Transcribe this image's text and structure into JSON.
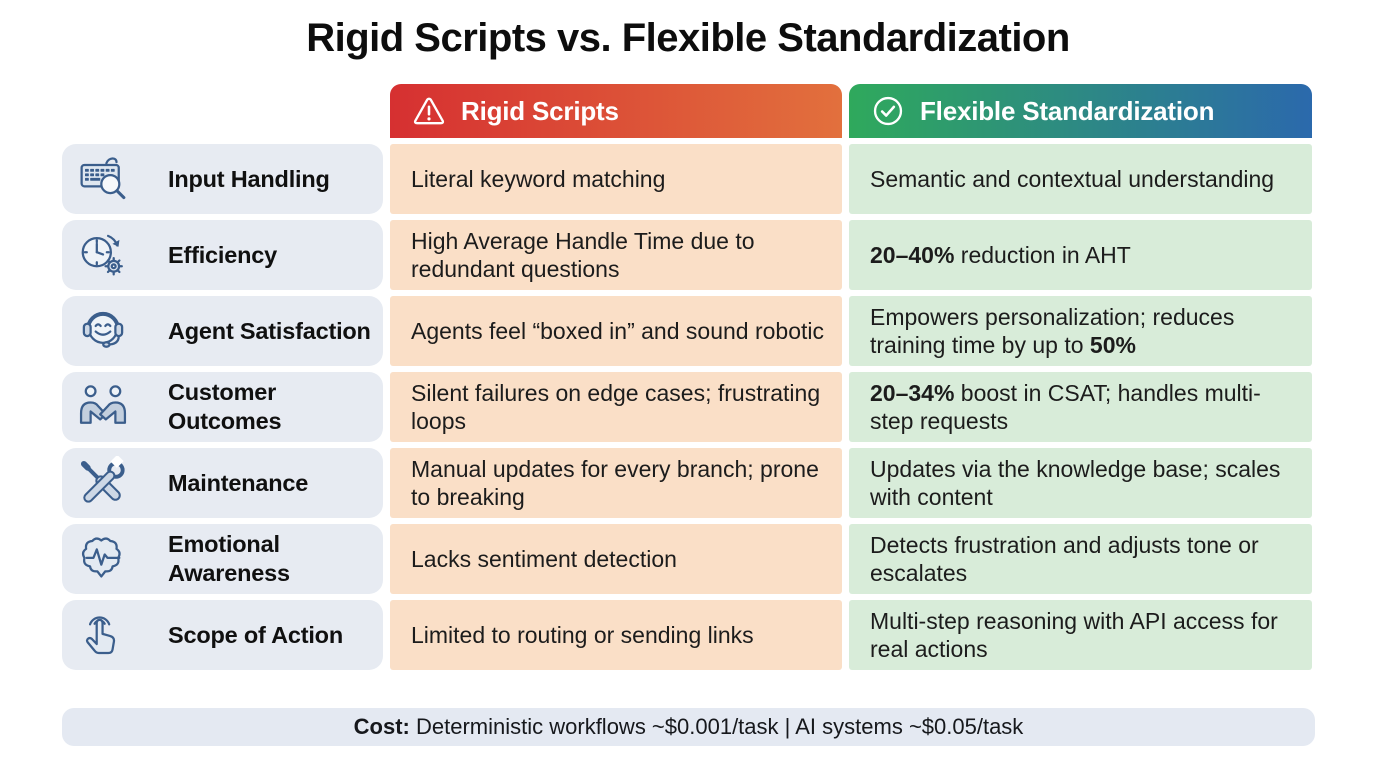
{
  "title": "Rigid Scripts vs. Flexible Standardization",
  "header": {
    "rigid": {
      "label": "Rigid Scripts",
      "icon": "warning-triangle-icon"
    },
    "flexible": {
      "label": "Flexible Standardization",
      "icon": "check-circle-icon"
    }
  },
  "rows": [
    {
      "category": "Input Handling",
      "icon": "keyboard-search-icon",
      "rigid": [
        {
          "t": "Literal keyword matching",
          "b": false
        }
      ],
      "flexible": [
        {
          "t": "Semantic and contextual understanding",
          "b": false
        }
      ]
    },
    {
      "category": "Efficiency",
      "icon": "clock-gear-icon",
      "rigid": [
        {
          "t": "High Average Handle Time due to redundant questions",
          "b": false
        }
      ],
      "flexible": [
        {
          "t": "20–40%",
          "b": true
        },
        {
          "t": " reduction in AHT",
          "b": false
        }
      ]
    },
    {
      "category": "Agent Satisfaction",
      "icon": "agent-headset-icon",
      "rigid": [
        {
          "t": "Agents feel “boxed in” and sound robotic",
          "b": false
        }
      ],
      "flexible": [
        {
          "t": "Empowers personalization; reduces training time by up to ",
          "b": false
        },
        {
          "t": "50%",
          "b": true
        }
      ]
    },
    {
      "category": "Customer Outcomes",
      "icon": "handshake-icon",
      "rigid": [
        {
          "t": "Silent failures on edge cases; frustrating loops",
          "b": false
        }
      ],
      "flexible": [
        {
          "t": "20–34%",
          "b": true
        },
        {
          "t": " boost in CSAT; handles multi-step requests",
          "b": false
        }
      ]
    },
    {
      "category": "Maintenance",
      "icon": "tools-icon",
      "rigid": [
        {
          "t": "Manual updates for every branch; prone to breaking",
          "b": false
        }
      ],
      "flexible": [
        {
          "t": "Updates via the knowledge base; scales with content",
          "b": false
        }
      ]
    },
    {
      "category": "Emotional Awareness",
      "icon": "brain-pulse-icon",
      "rigid": [
        {
          "t": "Lacks sentiment detection",
          "b": false
        }
      ],
      "flexible": [
        {
          "t": "Detects frustration and adjusts tone or escalates",
          "b": false
        }
      ]
    },
    {
      "category": "Scope of Action",
      "icon": "tap-hand-icon",
      "rigid": [
        {
          "t": "Limited to routing or sending links",
          "b": false
        }
      ],
      "flexible": [
        {
          "t": "Multi-step reasoning with API access for real actions",
          "b": false
        }
      ]
    }
  ],
  "footer": [
    {
      "t": "Cost:",
      "b": true
    },
    {
      "t": " Deterministic workflows ~$0.001/task | AI systems ~$0.05/task",
      "b": false
    }
  ],
  "colors": {
    "rigid_gradient_from": "#d63031",
    "rigid_gradient_to": "#e2703d",
    "flexible_gradient_from": "#2fa95c",
    "flexible_gradient_to": "#2b69ac",
    "category_cell_bg": "#e7ebf2",
    "rigid_cell_bg": "#fadfc7",
    "flexible_cell_bg": "#d8ecd9",
    "footer_bg": "#e4e9f2",
    "icon_stroke": "#3b5e8c"
  }
}
